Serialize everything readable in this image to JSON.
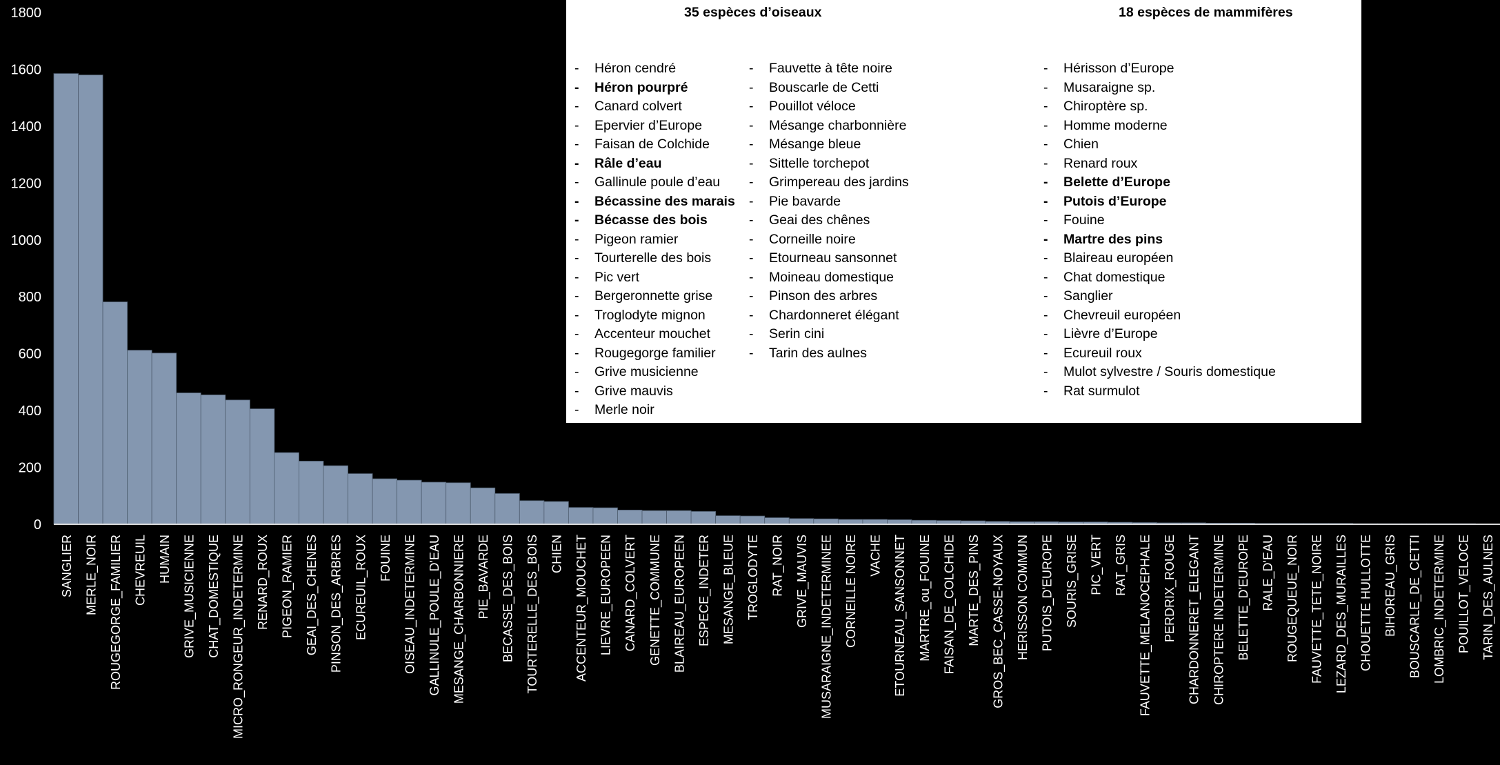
{
  "chart_data": {
    "type": "bar",
    "ylim": [
      0,
      1800
    ],
    "yticks": [
      0,
      200,
      400,
      600,
      800,
      1000,
      1200,
      1400,
      1600,
      1800
    ],
    "bar_color": "#8497b0",
    "background": "#000000",
    "categories": [
      "SANGLIER",
      "MERLE_NOIR",
      "ROUGEGORGE_FAMILIER",
      "CHEVREUIL",
      "HUMAIN",
      "GRIVE_MUSICIENNE",
      "CHAT_DOMESTIQUE",
      "MICRO_RONGEUR_INDETERMINE",
      "RENARD_ROUX",
      "PIGEON_RAMIER",
      "GEAI_DES_CHENES",
      "PINSON_DES_ARBRES",
      "ECUREUIL_ROUX",
      "FOUINE",
      "OISEAU_INDETERMINE",
      "GALLINULE_POULE_D'EAU",
      "MESANGE_CHARBONNIERE",
      "PIE_BAVARDE",
      "BECASSE_DES_BOIS",
      "TOURTERELLE_DES_BOIS",
      "CHIEN",
      "ACCENTEUR_MOUCHET",
      "LIEVRE_EUROPEEN",
      "CANARD_COLVERT",
      "GENETTE_COMMUNE",
      "BLAIREAU_EUROPEEN",
      "ESPECE_INDETER",
      "MESANGE_BLEUE",
      "TROGLODYTE",
      "RAT_NOIR",
      "GRIVE_MAUVIS",
      "MUSARAIGNE_INDETERMINEE",
      "CORNEILLE NOIRE",
      "VACHE",
      "ETOURNEAU_SANSONNET",
      "MARTRE_ou_FOUINE",
      "FAISAN_DE_COLCHIDE",
      "MARTE_DES_PINS",
      "GROS_BEC_CASSE-NOYAUX",
      "HERISSON COMMUN",
      "PUTOIS_D'EUROPE",
      "SOURIS_GRISE",
      "PIC_VERT",
      "RAT_GRIS",
      "FAUVETTE_MELANOCEPHALE",
      "PERDRIX_ROUGE",
      "CHARDONNERET_ELEGANT",
      "CHIROPTERE INDETERMINE",
      "BELETTE_D'EUROPE",
      "RALE_D'EAU",
      "ROUGEQUEUE_NOIR",
      "FAUVETTE_TETE_NOIRE",
      "LEZARD_DES_MURAILLES",
      "CHOUETTE HULLOTTE",
      "BIHOREAU_GRIS",
      "BOUSCARLE_DE_CETTI",
      "LOMBRIC_INDETERMINE",
      "POUILLOT_VELOCE",
      "TARIN_DES_AULNES"
    ],
    "values": [
      1585,
      1580,
      782,
      612,
      602,
      462,
      455,
      437,
      406,
      252,
      222,
      206,
      178,
      160,
      155,
      148,
      146,
      128,
      108,
      83,
      80,
      59,
      58,
      50,
      48,
      48,
      45,
      30,
      29,
      23,
      20,
      19,
      17,
      17,
      16,
      14,
      13,
      12,
      10,
      9,
      9,
      8,
      8,
      7,
      6,
      5,
      5,
      4,
      4,
      3,
      3,
      3,
      3,
      2,
      2,
      2,
      2,
      2,
      1
    ]
  },
  "species_box": {
    "birds_title": "35 espèces d’oiseaux",
    "mammals_title": "18 espèces de mammifères",
    "birds_col1": [
      {
        "name": "Héron cendré",
        "bold": false
      },
      {
        "name": "Héron pourpré",
        "bold": true
      },
      {
        "name": "Canard colvert",
        "bold": false
      },
      {
        "name": "Epervier d’Europe",
        "bold": false
      },
      {
        "name": "Faisan de Colchide",
        "bold": false
      },
      {
        "name": "Râle d’eau",
        "bold": true
      },
      {
        "name": "Gallinule poule d’eau",
        "bold": false
      },
      {
        "name": "Bécassine des marais",
        "bold": true
      },
      {
        "name": "Bécasse des bois",
        "bold": true
      },
      {
        "name": "Pigeon ramier",
        "bold": false
      },
      {
        "name": "Tourterelle des bois",
        "bold": false
      },
      {
        "name": "Pic vert",
        "bold": false
      },
      {
        "name": "Bergeronnette grise",
        "bold": false
      },
      {
        "name": "Troglodyte mignon",
        "bold": false
      },
      {
        "name": "Accenteur mouchet",
        "bold": false
      },
      {
        "name": "Rougegorge familier",
        "bold": false
      },
      {
        "name": "Grive musicienne",
        "bold": false
      },
      {
        "name": "Grive mauvis",
        "bold": false
      },
      {
        "name": "Merle noir",
        "bold": false
      }
    ],
    "birds_col2": [
      {
        "name": "Fauvette à tête noire",
        "bold": false
      },
      {
        "name": "Bouscarle de Cetti",
        "bold": false
      },
      {
        "name": "Pouillot véloce",
        "bold": false
      },
      {
        "name": "Mésange charbonnière",
        "bold": false
      },
      {
        "name": "Mésange bleue",
        "bold": false
      },
      {
        "name": "Sittelle torchepot",
        "bold": false
      },
      {
        "name": "Grimpereau des jardins",
        "bold": false
      },
      {
        "name": "Pie bavarde",
        "bold": false
      },
      {
        "name": "Geai des chênes",
        "bold": false
      },
      {
        "name": "Corneille noire",
        "bold": false
      },
      {
        "name": "Etourneau sansonnet",
        "bold": false
      },
      {
        "name": "Moineau domestique",
        "bold": false
      },
      {
        "name": "Pinson des arbres",
        "bold": false
      },
      {
        "name": "Chardonneret élégant",
        "bold": false
      },
      {
        "name": "Serin cini",
        "bold": false
      },
      {
        "name": "Tarin des aulnes",
        "bold": false
      }
    ],
    "mammals": [
      {
        "name": "Hérisson d’Europe",
        "bold": false
      },
      {
        "name": "Musaraigne sp.",
        "bold": false
      },
      {
        "name": "Chiroptère sp.",
        "bold": false
      },
      {
        "name": "Homme moderne",
        "bold": false
      },
      {
        "name": "Chien",
        "bold": false
      },
      {
        "name": "Renard roux",
        "bold": false
      },
      {
        "name": "Belette d’Europe",
        "bold": true
      },
      {
        "name": "Putois d’Europe",
        "bold": true
      },
      {
        "name": "Fouine",
        "bold": false
      },
      {
        "name": "Martre des pins",
        "bold": true
      },
      {
        "name": "Blaireau européen",
        "bold": false
      },
      {
        "name": "Chat domestique",
        "bold": false
      },
      {
        "name": "Sanglier",
        "bold": false
      },
      {
        "name": "Chevreuil européen",
        "bold": false
      },
      {
        "name": "Lièvre d’Europe",
        "bold": false
      },
      {
        "name": "Ecureuil roux",
        "bold": false
      },
      {
        "name": "Mulot sylvestre / Souris domestique",
        "bold": false
      },
      {
        "name": "Rat surmulot",
        "bold": false
      }
    ]
  }
}
